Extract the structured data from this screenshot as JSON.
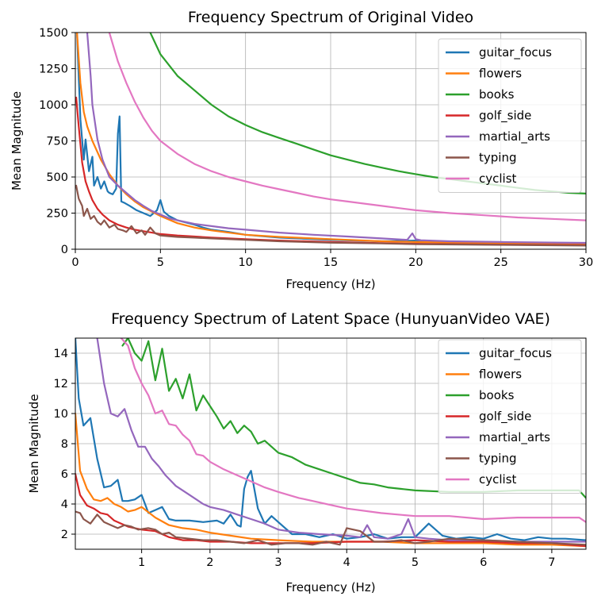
{
  "chart_data": [
    {
      "type": "line",
      "title": "Frequency Spectrum of Original Video",
      "xlabel": "Frequency (Hz)",
      "ylabel": "Mean Magnitude",
      "xlim": [
        0,
        30
      ],
      "ylim": [
        0,
        1500
      ],
      "xticks": [
        0,
        5,
        10,
        15,
        20,
        25,
        30
      ],
      "yticks": [
        0,
        250,
        500,
        750,
        1000,
        1250,
        1500
      ],
      "grid": true,
      "legend_position": "top-right",
      "series": [
        {
          "name": "guitar_focus",
          "color": "#1f77b4",
          "x": [
            0.1,
            0.3,
            0.5,
            0.6,
            0.8,
            1.0,
            1.1,
            1.3,
            1.5,
            1.7,
            1.9,
            2.0,
            2.2,
            2.4,
            2.5,
            2.6,
            2.7,
            2.9,
            3.2,
            3.6,
            4.0,
            4.4,
            4.8,
            5.0,
            5.2,
            5.5,
            6.0,
            7.0,
            7.5,
            8.0,
            9.0,
            10,
            12,
            15,
            18,
            20,
            22,
            25,
            28,
            30
          ],
          "y": [
            1500,
            900,
            620,
            760,
            540,
            640,
            440,
            500,
            420,
            470,
            400,
            390,
            380,
            420,
            800,
            920,
            330,
            320,
            300,
            270,
            250,
            230,
            270,
            340,
            260,
            230,
            200,
            170,
            150,
            135,
            120,
            100,
            80,
            65,
            55,
            60,
            48,
            40,
            35,
            32
          ]
        },
        {
          "name": "flowers",
          "color": "#ff7f0e",
          "x": [
            0.1,
            0.3,
            0.5,
            0.7,
            1.0,
            1.5,
            2.0,
            2.5,
            3.0,
            3.5,
            4.0,
            4.5,
            5.0,
            6.0,
            7.0,
            8.0,
            10,
            12,
            15,
            18,
            20,
            25,
            30
          ],
          "y": [
            1500,
            1150,
            950,
            850,
            750,
            620,
            520,
            440,
            380,
            330,
            290,
            260,
            230,
            180,
            150,
            130,
            100,
            85,
            70,
            55,
            50,
            40,
            32
          ]
        },
        {
          "name": "books",
          "color": "#2ca02c",
          "x": [
            4.4,
            5.0,
            6.0,
            7.0,
            8.0,
            9.0,
            10,
            11,
            12,
            13,
            14,
            15,
            16,
            17,
            18,
            19,
            20,
            21,
            22,
            23,
            24,
            25,
            26,
            27,
            28,
            29,
            30
          ],
          "y": [
            1500,
            1350,
            1200,
            1100,
            1000,
            920,
            860,
            810,
            770,
            730,
            690,
            650,
            620,
            590,
            565,
            540,
            520,
            500,
            485,
            470,
            455,
            440,
            425,
            410,
            400,
            390,
            385
          ]
        },
        {
          "name": "golf_side",
          "color": "#d62728",
          "x": [
            0.05,
            0.2,
            0.4,
            0.6,
            0.8,
            1.0,
            1.3,
            1.6,
            2.0,
            2.5,
            3.0,
            3.5,
            4.0,
            4.5,
            5.0,
            6.0,
            7.0,
            8.0,
            10,
            12,
            15,
            18,
            20,
            25,
            30
          ],
          "y": [
            1050,
            850,
            600,
            470,
            400,
            340,
            280,
            240,
            200,
            170,
            150,
            135,
            125,
            115,
            105,
            95,
            88,
            80,
            70,
            60,
            50,
            42,
            38,
            32,
            28
          ]
        },
        {
          "name": "martial_arts",
          "color": "#9467bd",
          "x": [
            0.7,
            0.9,
            1.0,
            1.3,
            1.6,
            2.0,
            2.5,
            3.0,
            3.5,
            4.0,
            4.5,
            5.0,
            5.5,
            6.0,
            7.0,
            8.0,
            9.0,
            10,
            12,
            14,
            16,
            18,
            19.5,
            19.8,
            20.0,
            20.3,
            22,
            25,
            28,
            30
          ],
          "y": [
            1500,
            1200,
            1000,
            760,
            620,
            500,
            440,
            390,
            340,
            300,
            265,
            240,
            215,
            200,
            175,
            160,
            145,
            135,
            115,
            100,
            88,
            75,
            65,
            110,
            70,
            62,
            55,
            50,
            46,
            44
          ]
        },
        {
          "name": "typing",
          "color": "#8c564b",
          "x": [
            0.05,
            0.2,
            0.4,
            0.5,
            0.7,
            0.9,
            1.1,
            1.3,
            1.5,
            1.7,
            2.0,
            2.3,
            2.5,
            2.8,
            3.0,
            3.3,
            3.6,
            3.9,
            4.1,
            4.4,
            4.7,
            5.0,
            5.5,
            6.0,
            7.0,
            8.0,
            10,
            12,
            15,
            18,
            20,
            25,
            30
          ],
          "y": [
            440,
            350,
            300,
            230,
            280,
            210,
            230,
            190,
            170,
            200,
            150,
            170,
            140,
            130,
            120,
            160,
            110,
            130,
            100,
            150,
            110,
            95,
            90,
            85,
            80,
            75,
            65,
            55,
            45,
            40,
            35,
            30,
            25
          ]
        },
        {
          "name": "cyclist",
          "color": "#e377c2",
          "x": [
            2.0,
            2.5,
            3.0,
            3.5,
            4.0,
            4.5,
            5.0,
            6.0,
            7.0,
            8.0,
            9.0,
            10,
            11,
            12,
            13,
            14,
            15,
            16,
            18,
            20,
            22,
            24,
            26,
            28,
            30
          ],
          "y": [
            1500,
            1300,
            1150,
            1020,
            910,
            820,
            750,
            660,
            590,
            540,
            500,
            470,
            440,
            415,
            390,
            365,
            345,
            330,
            300,
            270,
            250,
            235,
            220,
            210,
            200
          ]
        }
      ]
    },
    {
      "type": "line",
      "title": "Frequency Spectrum of Latent Space (HunyuanVideo VAE)",
      "xlabel": "Frequency (Hz)",
      "ylabel": "Mean Magnitude",
      "xlim": [
        0.03,
        7.5
      ],
      "ylim": [
        1,
        15
      ],
      "xticks": [
        1,
        2,
        3,
        4,
        5,
        6,
        7
      ],
      "yticks": [
        2,
        4,
        6,
        8,
        10,
        12,
        14
      ],
      "grid": true,
      "legend_position": "top-right",
      "series": [
        {
          "name": "guitar_focus",
          "color": "#1f77b4",
          "x": [
            0.03,
            0.08,
            0.15,
            0.25,
            0.35,
            0.45,
            0.55,
            0.65,
            0.72,
            0.8,
            0.9,
            1.0,
            1.1,
            1.2,
            1.3,
            1.4,
            1.5,
            1.7,
            1.9,
            2.1,
            2.2,
            2.3,
            2.4,
            2.45,
            2.5,
            2.55,
            2.6,
            2.7,
            2.8,
            2.9,
            3.0,
            3.2,
            3.4,
            3.6,
            3.8,
            4.0,
            4.2,
            4.4,
            4.6,
            4.8,
            5.0,
            5.2,
            5.4,
            5.6,
            5.8,
            6.0,
            6.2,
            6.4,
            6.6,
            6.8,
            7.0,
            7.2,
            7.5
          ],
          "y": [
            15,
            11,
            9.2,
            9.7,
            7.0,
            5.1,
            5.2,
            5.6,
            4.2,
            4.2,
            4.3,
            4.6,
            3.4,
            3.6,
            3.8,
            3.0,
            2.9,
            2.9,
            2.8,
            2.9,
            2.7,
            3.3,
            2.6,
            2.5,
            5.0,
            5.8,
            6.2,
            3.7,
            2.7,
            3.2,
            2.8,
            2.0,
            2.0,
            1.8,
            2.0,
            1.7,
            1.8,
            2.0,
            1.7,
            1.8,
            1.8,
            2.7,
            1.9,
            1.7,
            1.8,
            1.7,
            2.0,
            1.7,
            1.6,
            1.8,
            1.7,
            1.7,
            1.6
          ]
        },
        {
          "name": "flowers",
          "color": "#ff7f0e",
          "x": [
            0.03,
            0.1,
            0.2,
            0.3,
            0.4,
            0.5,
            0.6,
            0.7,
            0.8,
            0.9,
            1.0,
            1.2,
            1.4,
            1.6,
            1.8,
            2.0,
            2.3,
            2.6,
            3.0,
            3.5,
            4.0,
            4.5,
            5.0,
            5.5,
            6.0,
            6.5,
            7.0,
            7.5
          ],
          "y": [
            10,
            6.2,
            5.0,
            4.3,
            4.2,
            4.4,
            4.0,
            3.8,
            3.5,
            3.6,
            3.8,
            3.1,
            2.6,
            2.4,
            2.3,
            2.1,
            1.9,
            1.7,
            1.6,
            1.5,
            1.5,
            1.5,
            1.4,
            1.4,
            1.4,
            1.3,
            1.3,
            1.2
          ]
        },
        {
          "name": "books",
          "color": "#2ca02c",
          "x": [
            0.72,
            0.8,
            0.9,
            1.0,
            1.1,
            1.2,
            1.3,
            1.4,
            1.5,
            1.6,
            1.7,
            1.8,
            1.9,
            2.0,
            2.1,
            2.2,
            2.3,
            2.4,
            2.5,
            2.6,
            2.7,
            2.8,
            2.9,
            3.0,
            3.2,
            3.4,
            3.6,
            3.8,
            4.0,
            4.2,
            4.4,
            4.6,
            4.8,
            5.0,
            5.5,
            6.0,
            6.5,
            7.0,
            7.4,
            7.5
          ],
          "y": [
            14.5,
            15,
            14.0,
            13.5,
            14.8,
            12.2,
            14.3,
            11.5,
            12.3,
            11.0,
            12.6,
            10.2,
            11.2,
            10.5,
            9.8,
            9.0,
            9.5,
            8.7,
            9.2,
            8.8,
            8.0,
            8.2,
            7.8,
            7.4,
            7.1,
            6.6,
            6.3,
            6.0,
            5.7,
            5.4,
            5.3,
            5.1,
            5.0,
            4.9,
            4.8,
            4.8,
            4.9,
            4.9,
            4.9,
            4.4
          ]
        },
        {
          "name": "golf_side",
          "color": "#d62728",
          "x": [
            0.03,
            0.1,
            0.2,
            0.3,
            0.4,
            0.5,
            0.6,
            0.7,
            0.8,
            0.9,
            1.0,
            1.2,
            1.4,
            1.6,
            1.8,
            2.0,
            2.3,
            2.6,
            3.0,
            3.5,
            4.0,
            4.5,
            5.0,
            5.5,
            6.0,
            6.5,
            7.0,
            7.5
          ],
          "y": [
            6.0,
            4.6,
            3.9,
            3.7,
            3.4,
            3.3,
            2.9,
            2.7,
            2.5,
            2.4,
            2.3,
            2.2,
            1.8,
            1.6,
            1.6,
            1.5,
            1.5,
            1.4,
            1.4,
            1.4,
            1.5,
            1.5,
            1.6,
            1.5,
            1.5,
            1.4,
            1.4,
            1.2
          ]
        },
        {
          "name": "martial_arts",
          "color": "#9467bd",
          "x": [
            0.35,
            0.45,
            0.55,
            0.65,
            0.75,
            0.85,
            0.95,
            1.05,
            1.15,
            1.25,
            1.35,
            1.5,
            1.7,
            1.9,
            2.0,
            2.2,
            2.4,
            2.6,
            2.8,
            3.0,
            3.3,
            3.6,
            4.0,
            4.2,
            4.3,
            4.4,
            4.6,
            4.8,
            4.9,
            5.0,
            5.2,
            5.5,
            6.0,
            6.5,
            7.0,
            7.5
          ],
          "y": [
            15,
            12.0,
            10.0,
            9.8,
            10.3,
            8.9,
            7.8,
            7.8,
            7.0,
            6.5,
            5.9,
            5.2,
            4.6,
            4.0,
            3.8,
            3.6,
            3.3,
            3.0,
            2.7,
            2.3,
            2.1,
            2.0,
            1.9,
            1.8,
            2.6,
            1.8,
            1.7,
            2.0,
            3.0,
            1.8,
            1.7,
            1.6,
            1.6,
            1.5,
            1.5,
            1.5
          ]
        },
        {
          "name": "typing",
          "color": "#8c564b",
          "x": [
            0.03,
            0.1,
            0.15,
            0.25,
            0.35,
            0.45,
            0.55,
            0.65,
            0.75,
            0.85,
            0.95,
            1.1,
            1.2,
            1.3,
            1.4,
            1.5,
            1.7,
            1.9,
            2.1,
            2.3,
            2.5,
            2.7,
            2.9,
            3.1,
            3.3,
            3.5,
            3.7,
            3.9,
            4.0,
            4.2,
            4.4,
            4.6,
            4.8,
            5.0,
            5.2,
            5.5,
            6.0,
            6.5,
            7.0,
            7.5
          ],
          "y": [
            3.5,
            3.4,
            3.0,
            2.7,
            3.3,
            2.8,
            2.6,
            2.4,
            2.6,
            2.5,
            2.3,
            2.4,
            2.3,
            2.0,
            2.1,
            1.8,
            1.7,
            1.6,
            1.6,
            1.5,
            1.4,
            1.6,
            1.3,
            1.4,
            1.4,
            1.3,
            1.5,
            1.3,
            2.4,
            2.2,
            1.5,
            1.5,
            1.6,
            1.4,
            1.5,
            1.7,
            1.6,
            1.5,
            1.4,
            1.3
          ]
        },
        {
          "name": "cyclist",
          "color": "#e377c2",
          "x": [
            0.7,
            0.8,
            0.9,
            1.0,
            1.1,
            1.2,
            1.3,
            1.4,
            1.5,
            1.6,
            1.7,
            1.8,
            1.9,
            2.0,
            2.2,
            2.4,
            2.6,
            2.8,
            3.0,
            3.3,
            3.6,
            4.0,
            4.5,
            5.0,
            5.5,
            6.0,
            6.5,
            7.0,
            7.4,
            7.5
          ],
          "y": [
            15,
            14.5,
            13.0,
            12.0,
            11.2,
            10.0,
            10.2,
            9.3,
            9.2,
            8.6,
            8.2,
            7.3,
            7.2,
            6.8,
            6.3,
            5.9,
            5.5,
            5.1,
            4.8,
            4.4,
            4.1,
            3.7,
            3.4,
            3.2,
            3.2,
            3.0,
            3.1,
            3.1,
            3.1,
            2.8
          ]
        }
      ]
    }
  ]
}
